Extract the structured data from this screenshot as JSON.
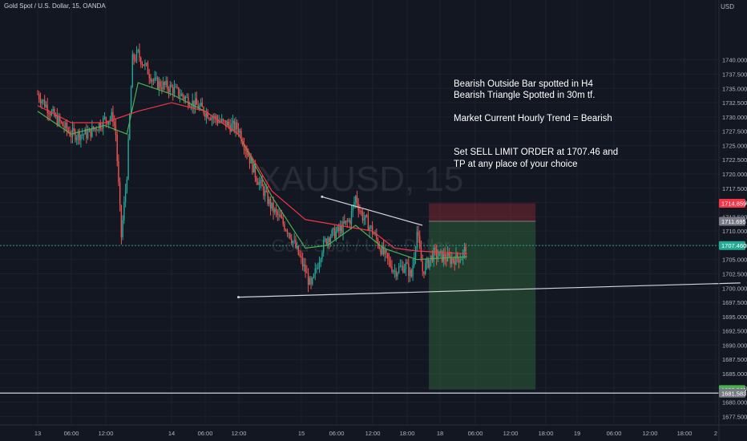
{
  "legend": {
    "symbol_text": "Gold Spot / U.S. Dollar, 15, OANDA"
  },
  "currency": "USD",
  "watermark": {
    "symbol": "XAUUSD, 15",
    "name": "Gold Spot / U.S. Dollar"
  },
  "annotation": {
    "lines": [
      "Bearish Outside Bar spotted in H4",
      "Bearish Triangle Spotted in 30m tf.",
      "",
      "Market Current Hourly Trend = Bearish",
      "",
      "",
      "Set SELL LIMIT ORDER at 1707.46 and",
      "TP at any place of your choice"
    ]
  },
  "colors": {
    "background": "#131722",
    "up": "#26a69a",
    "down": "#ef5350",
    "ma_fast": "#4caf50",
    "ma_slow": "#f23645",
    "stop_zone": "#f2364540",
    "target_zone": "#4caf5040",
    "current_price_line": "#22ab94"
  },
  "chart_data": {
    "type": "candlestick",
    "y_axis": {
      "range": [
        1676.0,
        1750.5
      ],
      "ticks": [
        "1677.500",
        "1680.000",
        "1682.500",
        "1685.000",
        "1687.500",
        "1690.000",
        "1692.500",
        "1695.000",
        "1697.500",
        "1700.000",
        "1702.500",
        "1705.000",
        "1707.500",
        "1710.000",
        "1712.500",
        "1715.000",
        "1717.500",
        "1720.000",
        "1722.500",
        "1725.000",
        "1727.500",
        "1730.000",
        "1732.500",
        "1735.000",
        "1737.500",
        "1740.000"
      ]
    },
    "x_axis": {
      "ticks": [
        "13",
        "06:00",
        "12:00",
        "14",
        "06:00",
        "12:00",
        "15",
        "06:00",
        "12:00",
        "18:00",
        "18",
        "06:00",
        "12:00",
        "18:00",
        "19",
        "06:00",
        "12:00",
        "18:00",
        "2"
      ]
    },
    "price_tags": [
      {
        "label": "1714.859",
        "value": 1714.859,
        "color": "#f23645"
      },
      {
        "label": "1711.695",
        "value": 1711.695,
        "color": "#787b86"
      },
      {
        "label": "1707.460",
        "value": 1707.46,
        "color": "#22ab94"
      },
      {
        "label": "1682.205",
        "value": 1682.205,
        "color": "#4caf50"
      },
      {
        "label": "1681.583",
        "value": 1681.583,
        "color": "#787b86"
      }
    ],
    "horizontal_lines": [
      {
        "name": "current-price",
        "value": 1707.46
      },
      {
        "name": "support",
        "value": 1681.583
      }
    ],
    "position_tool": {
      "direction": "short",
      "entry": 1711.695,
      "stop": 1714.859,
      "target": 1682.205
    },
    "trendlines": [
      {
        "from": {
          "t": "15 03:00",
          "price": 1716.0
        },
        "to": {
          "t": "15 21:00",
          "price": 1711.0
        }
      },
      {
        "from": {
          "t": "14 12:00",
          "price": 1698.4
        },
        "to": {
          "t": "18 06:00",
          "price": 1700.9
        }
      }
    ],
    "price_path": [
      [
        "13 00:00",
        1734.0
      ],
      [
        "13 03:00",
        1730.0
      ],
      [
        "13 06:00",
        1727.0
      ],
      [
        "13 09:00",
        1727.0
      ],
      [
        "13 12:00",
        1729.5
      ],
      [
        "13 13:30",
        1730.0
      ],
      [
        "13 14:00",
        1727.0
      ],
      [
        "13 15:00",
        1709.0
      ],
      [
        "13 16:00",
        1720.0
      ],
      [
        "13 17:00",
        1740.0
      ],
      [
        "13 18:00",
        1741.0
      ],
      [
        "13 21:00",
        1736.0
      ],
      [
        "14 00:00",
        1735.0
      ],
      [
        "14 03:00",
        1733.0
      ],
      [
        "14 06:00",
        1731.0
      ],
      [
        "14 09:00",
        1729.0
      ],
      [
        "14 12:00",
        1728.0
      ],
      [
        "14 15:00",
        1720.0
      ],
      [
        "14 18:00",
        1714.0
      ],
      [
        "14 21:00",
        1710.0
      ],
      [
        "15 00:00",
        1703.0
      ],
      [
        "15 01:00",
        1700.0
      ],
      [
        "15 03:00",
        1707.0
      ],
      [
        "15 04:00",
        1709.0
      ],
      [
        "15 06:00",
        1710.0
      ],
      [
        "15 08:00",
        1712.0
      ],
      [
        "15 09:00",
        1716.0
      ],
      [
        "15 10:00",
        1713.0
      ],
      [
        "15 12:00",
        1710.0
      ],
      [
        "15 14:00",
        1706.0
      ],
      [
        "15 16:00",
        1703.0
      ],
      [
        "15 18:00",
        1704.0
      ],
      [
        "15 19:00",
        1702.0
      ],
      [
        "15 20:00",
        1710.0
      ],
      [
        "15 21:00",
        1703.0
      ],
      [
        "15 23:00",
        1706.0
      ],
      [
        "16 02:00",
        1705.0
      ],
      [
        "16 04:00",
        1705.5
      ],
      [
        "16 05:00",
        1707.5
      ]
    ],
    "ma_fast_path": [
      [
        "13 00:00",
        1731.0
      ],
      [
        "13 06:00",
        1727.0
      ],
      [
        "13 12:00",
        1728.5
      ],
      [
        "13 16:00",
        1727.0
      ],
      [
        "13 18:00",
        1736.0
      ],
      [
        "14 00:00",
        1734.0
      ],
      [
        "14 06:00",
        1731.0
      ],
      [
        "14 12:00",
        1727.0
      ],
      [
        "14 18:00",
        1716.0
      ],
      [
        "15 00:00",
        1707.0
      ],
      [
        "15 04:00",
        1707.5
      ],
      [
        "15 09:00",
        1711.0
      ],
      [
        "15 14:00",
        1707.0
      ],
      [
        "15 20:00",
        1705.0
      ],
      [
        "16 05:00",
        1705.5
      ]
    ],
    "ma_slow_path": [
      [
        "13 00:00",
        1732.0
      ],
      [
        "13 06:00",
        1729.0
      ],
      [
        "13 12:00",
        1729.0
      ],
      [
        "13 18:00",
        1731.0
      ],
      [
        "14 00:00",
        1732.5
      ],
      [
        "14 06:00",
        1731.0
      ],
      [
        "14 12:00",
        1727.0
      ],
      [
        "14 18:00",
        1717.0
      ],
      [
        "15 00:00",
        1712.0
      ],
      [
        "15 06:00",
        1711.0
      ],
      [
        "15 12:00",
        1710.0
      ],
      [
        "15 16:00",
        1707.0
      ],
      [
        "15 20:00",
        1706.5
      ],
      [
        "16 05:00",
        1706.0
      ]
    ]
  }
}
